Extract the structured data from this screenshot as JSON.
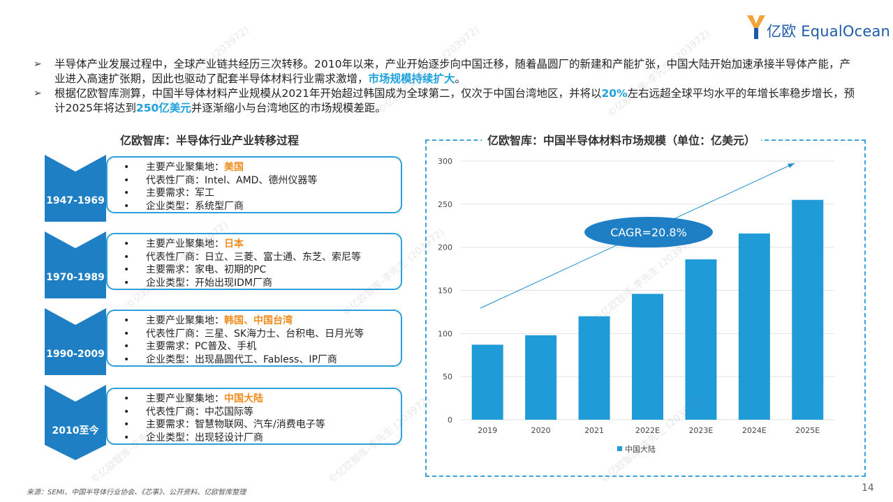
{
  "logo": {
    "text": "亿欧 EqualOcean"
  },
  "bullets": [
    {
      "parts": [
        {
          "t": "半导体产业发展过程中，全球产业链共经历三次转移。2010年以来，产业开始逐步向中国迁移，随着晶圆厂的新建和产能扩张，中国大陆开始加速承接半导体产能，产业进入高速扩张期，因此也驱动了配套半导体材料行业需求激增，"
        },
        {
          "t": "市场规模持续扩大",
          "hl": true
        },
        {
          "t": "。"
        }
      ]
    },
    {
      "parts": [
        {
          "t": "根据亿欧智库测算，中国半导体材料产业规模从2021年开始超过韩国成为全球第二，仅次于中国台湾地区，并将以"
        },
        {
          "t": "20%",
          "hl": true
        },
        {
          "t": "左右远超全球平均水平的年增长率稳步增长，预计2025年将达到"
        },
        {
          "t": "250亿美元",
          "hl": true
        },
        {
          "t": "并逐渐缩小与台湾地区的市场规模差距。"
        }
      ]
    }
  ],
  "left_panel": {
    "title": "亿欧智库：半导体行业产业转移过程",
    "eras": [
      {
        "period": "1947-1969",
        "items": [
          {
            "label": "主要产业聚集地：",
            "value": "美国",
            "orange": true
          },
          {
            "label": "代表性厂商：",
            "value": "Intel、AMD、德州仪器等"
          },
          {
            "label": "主要需求：",
            "value": "军工"
          },
          {
            "label": "企业类型：",
            "value": "系统型厂商"
          }
        ]
      },
      {
        "period": "1970-1989",
        "items": [
          {
            "label": "主要产业聚集地：",
            "value": "日本",
            "orange": true
          },
          {
            "label": "代表性厂商：",
            "value": "日立、三菱、富士通、东芝、索尼等"
          },
          {
            "label": "主要需求：",
            "value": "家电、初期的PC"
          },
          {
            "label": "企业类型：",
            "value": "开始出现IDM厂商"
          }
        ]
      },
      {
        "period": "1990-2009",
        "items": [
          {
            "label": "主要产业聚集地：",
            "value": "韩国、中国台湾",
            "orange": true
          },
          {
            "label": "代表性厂商：",
            "value": "三星、SK海力士、台积电、日月光等"
          },
          {
            "label": "主要需求：",
            "value": "PC普及、手机"
          },
          {
            "label": "企业类型：",
            "value": "出现晶圆代工、Fabless、IP厂商"
          }
        ]
      },
      {
        "period": "2010至今",
        "items": [
          {
            "label": "主要产业聚集地：",
            "value": "中国大陆",
            "orange": true
          },
          {
            "label": "代表性厂商：",
            "value": "中芯国际等"
          },
          {
            "label": "主要需求：",
            "value": "智慧物联网、汽车/消费电子等"
          },
          {
            "label": "企业类型：",
            "value": "出现轻设计厂商"
          }
        ]
      }
    ]
  },
  "chart_data": {
    "type": "bar",
    "title": "亿欧智库：中国半导体材料市场规模（单位：亿美元）",
    "categories": [
      "2019",
      "2020",
      "2021",
      "2022E",
      "2023E",
      "2024E",
      "2025E"
    ],
    "series": [
      {
        "name": "中国大陆",
        "values": [
          87,
          98,
          120,
          146,
          186,
          216,
          255
        ]
      }
    ],
    "ylim": [
      0,
      300
    ],
    "yticks": [
      0,
      50,
      100,
      150,
      200,
      250,
      300
    ],
    "grid": true,
    "legend": "bottom-center",
    "annotation": "CAGR=20.8%",
    "bar_color": "#1f9bd7"
  },
  "source": "来源：SEMI、中国半导体行业协会、《芯事》、公开资料、亿欧智库整理",
  "page_number": "14",
  "watermark": "©亿欧智库-李先生 (203972)",
  "colors": {
    "accent": "#1ea1dc",
    "highlight_orange": "#f08c1e",
    "chevron": "#1f7fc4"
  }
}
